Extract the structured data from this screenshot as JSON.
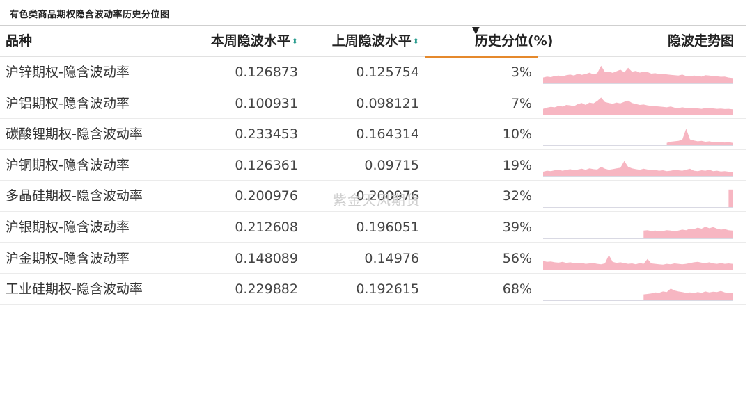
{
  "caption": "有色类商品期权隐含波动率历史分位图",
  "watermark": "紫金天风期货",
  "headers": {
    "name": "品种",
    "this_week": "本周隐波水平",
    "last_week": "上周隐波水平",
    "percentile": "历史分位(%)",
    "trend": "隐波走势图"
  },
  "colors": {
    "sparkline": "#f7b6c2",
    "active_sort": "#e5892c",
    "sort_icon": "#2a9d8f"
  },
  "rows": [
    {
      "name": "沪锌期权-隐含波动率",
      "this_week": "0.126873",
      "last_week": "0.125754",
      "percentile": "3%",
      "spark": [
        0.3,
        0.35,
        0.32,
        0.38,
        0.4,
        0.36,
        0.42,
        0.45,
        0.4,
        0.5,
        0.44,
        0.48,
        0.55,
        0.46,
        0.52,
        0.9,
        0.58,
        0.6,
        0.54,
        0.62,
        0.7,
        0.56,
        0.8,
        0.6,
        0.64,
        0.55,
        0.6,
        0.58,
        0.5,
        0.52,
        0.48,
        0.5,
        0.46,
        0.44,
        0.42,
        0.4,
        0.45,
        0.38,
        0.36,
        0.4,
        0.38,
        0.35,
        0.42,
        0.4,
        0.38,
        0.36,
        0.34,
        0.35,
        0.3,
        0.28
      ]
    },
    {
      "name": "沪铝期权-隐含波动率",
      "this_week": "0.100931",
      "last_week": "0.098121",
      "percentile": "7%",
      "spark": [
        0.3,
        0.36,
        0.4,
        0.38,
        0.45,
        0.42,
        0.5,
        0.48,
        0.44,
        0.55,
        0.6,
        0.5,
        0.62,
        0.58,
        0.7,
        0.88,
        0.65,
        0.6,
        0.56,
        0.62,
        0.58,
        0.66,
        0.72,
        0.6,
        0.55,
        0.5,
        0.52,
        0.48,
        0.45,
        0.44,
        0.42,
        0.4,
        0.38,
        0.42,
        0.36,
        0.34,
        0.38,
        0.35,
        0.33,
        0.36,
        0.32,
        0.3,
        0.34,
        0.33,
        0.32,
        0.3,
        0.31,
        0.29,
        0.3,
        0.28
      ]
    },
    {
      "name": "碳酸锂期权-隐含波动率",
      "this_week": "0.233453",
      "last_week": "0.164314",
      "percentile": "10%",
      "spark": [
        0,
        0,
        0,
        0,
        0,
        0,
        0,
        0,
        0,
        0,
        0,
        0,
        0,
        0,
        0,
        0,
        0,
        0,
        0,
        0,
        0,
        0,
        0,
        0,
        0,
        0,
        0,
        0,
        0,
        0,
        0,
        0,
        0.12,
        0.18,
        0.2,
        0.22,
        0.28,
        0.85,
        0.3,
        0.24,
        0.2,
        0.22,
        0.18,
        0.2,
        0.16,
        0.18,
        0.15,
        0.14,
        0.16,
        0.12
      ]
    },
    {
      "name": "沪铜期权-隐含波动率",
      "this_week": "0.126361",
      "last_week": "0.09715",
      "percentile": "19%",
      "spark": [
        0.25,
        0.3,
        0.28,
        0.32,
        0.35,
        0.3,
        0.34,
        0.38,
        0.32,
        0.36,
        0.4,
        0.35,
        0.42,
        0.38,
        0.36,
        0.5,
        0.4,
        0.35,
        0.38,
        0.42,
        0.45,
        0.8,
        0.5,
        0.42,
        0.38,
        0.35,
        0.4,
        0.36,
        0.32,
        0.34,
        0.3,
        0.32,
        0.28,
        0.3,
        0.34,
        0.32,
        0.3,
        0.35,
        0.4,
        0.3,
        0.28,
        0.32,
        0.3,
        0.35,
        0.28,
        0.3,
        0.26,
        0.28,
        0.25,
        0.22
      ]
    },
    {
      "name": "多晶硅期权-隐含波动率",
      "this_week": "0.200976",
      "last_week": "0.200976",
      "percentile": "32%",
      "spark": [
        0,
        0,
        0,
        0,
        0,
        0,
        0,
        0,
        0,
        0,
        0,
        0,
        0,
        0,
        0,
        0,
        0,
        0,
        0,
        0,
        0,
        0,
        0,
        0,
        0,
        0,
        0,
        0,
        0,
        0,
        0,
        0,
        0,
        0,
        0,
        0,
        0,
        0,
        0,
        0,
        0,
        0,
        0,
        0,
        0,
        0,
        0,
        0,
        0.9,
        0.9
      ]
    },
    {
      "name": "沪银期权-隐含波动率",
      "this_week": "0.212608",
      "last_week": "0.196051",
      "percentile": "39%",
      "spark": [
        0,
        0,
        0,
        0,
        0,
        0,
        0,
        0,
        0,
        0,
        0,
        0,
        0,
        0,
        0,
        0,
        0,
        0,
        0,
        0,
        0,
        0,
        0,
        0,
        0,
        0,
        0.4,
        0.42,
        0.38,
        0.4,
        0.36,
        0.38,
        0.42,
        0.4,
        0.36,
        0.4,
        0.45,
        0.42,
        0.5,
        0.48,
        0.55,
        0.5,
        0.6,
        0.52,
        0.58,
        0.5,
        0.45,
        0.48,
        0.42,
        0.4
      ]
    },
    {
      "name": "沪金期权-隐含波动率",
      "this_week": "0.148089",
      "last_week": "0.14976",
      "percentile": "56%",
      "spark": [
        0.45,
        0.4,
        0.42,
        0.38,
        0.36,
        0.4,
        0.35,
        0.38,
        0.34,
        0.32,
        0.35,
        0.3,
        0.32,
        0.34,
        0.3,
        0.28,
        0.32,
        0.75,
        0.4,
        0.35,
        0.38,
        0.34,
        0.3,
        0.32,
        0.28,
        0.34,
        0.3,
        0.55,
        0.32,
        0.3,
        0.28,
        0.26,
        0.3,
        0.28,
        0.32,
        0.3,
        0.28,
        0.3,
        0.34,
        0.38,
        0.4,
        0.36,
        0.34,
        0.38,
        0.32,
        0.3,
        0.34,
        0.3,
        0.32,
        0.3
      ]
    },
    {
      "name": "工业硅期权-隐含波动率",
      "this_week": "0.229882",
      "last_week": "0.192615",
      "percentile": "68%",
      "spark": [
        0,
        0,
        0,
        0,
        0,
        0,
        0,
        0,
        0,
        0,
        0,
        0,
        0,
        0,
        0,
        0,
        0,
        0,
        0,
        0,
        0,
        0,
        0,
        0,
        0,
        0,
        0.3,
        0.32,
        0.35,
        0.4,
        0.38,
        0.45,
        0.42,
        0.6,
        0.5,
        0.45,
        0.42,
        0.38,
        0.4,
        0.36,
        0.42,
        0.38,
        0.45,
        0.4,
        0.44,
        0.42,
        0.48,
        0.4,
        0.38,
        0.36
      ]
    }
  ]
}
